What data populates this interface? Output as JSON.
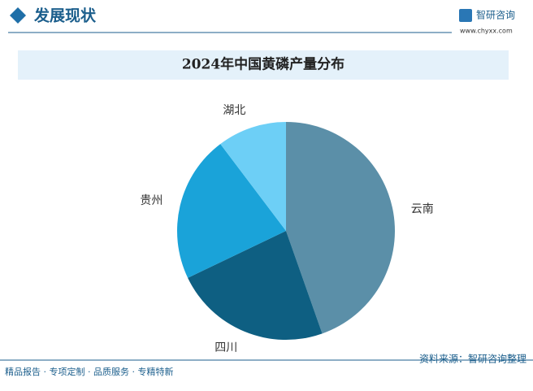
{
  "page": {
    "section": "发展现状",
    "brand": "智研咨询",
    "url": "www.chyxx.com",
    "footer": "精品报告 · 专项定制 · 品质服务 · 专精特新",
    "source": "资料来源：智研咨询整理"
  },
  "chart_data": {
    "type": "pie",
    "title": "2024年中国黄磷产量分布",
    "categories": [
      "云南",
      "四川",
      "贵州",
      "湖北"
    ],
    "values": [
      44.6,
      23.3,
      21.8,
      10.3
    ],
    "colors": [
      "#5b8fa8",
      "#0e5f82",
      "#1aa3d9",
      "#6dcff6"
    ],
    "start_angle": 0,
    "direction": "clockwise"
  }
}
